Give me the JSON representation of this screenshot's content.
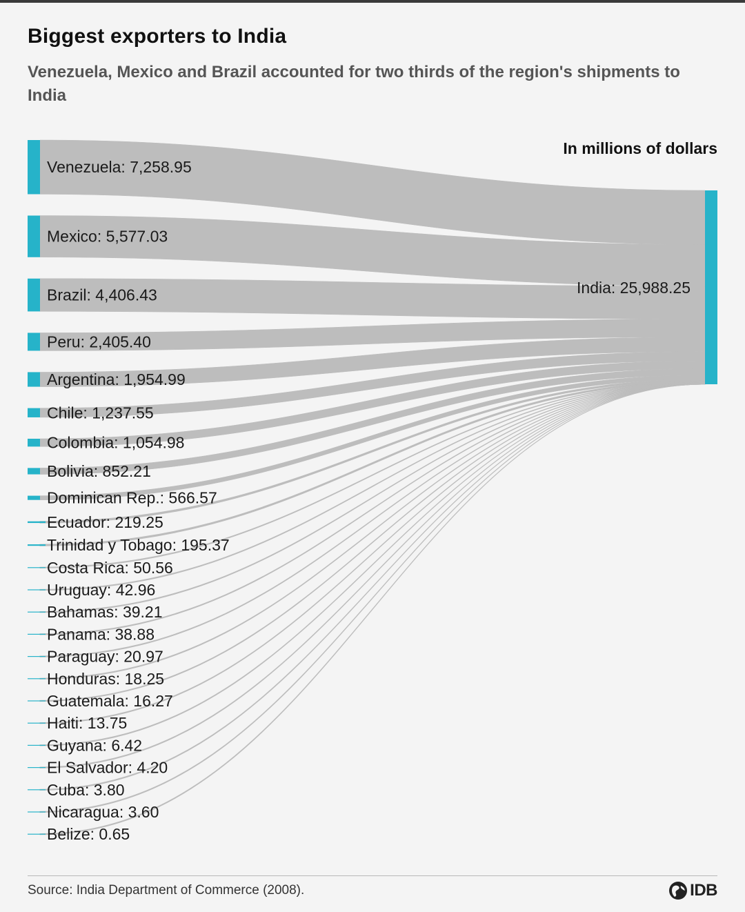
{
  "header": {
    "title": "Biggest exporters to India",
    "subtitle": "Venezuela, Mexico and Brazil accounted for two thirds of the region's shipments to India",
    "unit": "In millions of dollars"
  },
  "footer": {
    "source": "Source: India Department of Commerce (2008).",
    "logo_text": "IDB"
  },
  "colors": {
    "node": "#26b3c9",
    "link": "#bdbdbd",
    "background": "#f4f4f4"
  },
  "chart_data": {
    "type": "sankey",
    "title": "Biggest exporters to India",
    "target": {
      "name": "India",
      "value": 25988.25,
      "label": "India: 25,988.25"
    },
    "sources": [
      {
        "name": "Venezuela",
        "value": 7258.95,
        "label": "Venezuela: 7,258.95"
      },
      {
        "name": "Mexico",
        "value": 5577.03,
        "label": "Mexico: 5,577.03"
      },
      {
        "name": "Brazil",
        "value": 4406.43,
        "label": "Brazil: 4,406.43"
      },
      {
        "name": "Peru",
        "value": 2405.4,
        "label": "Peru: 2,405.40"
      },
      {
        "name": "Argentina",
        "value": 1954.99,
        "label": "Argentina: 1,954.99"
      },
      {
        "name": "Chile",
        "value": 1237.55,
        "label": "Chile: 1,237.55"
      },
      {
        "name": "Colombia",
        "value": 1054.98,
        "label": "Colombia: 1,054.98"
      },
      {
        "name": "Bolivia",
        "value": 852.21,
        "label": "Bolivia: 852.21"
      },
      {
        "name": "Dominican Rep.",
        "value": 566.57,
        "label": "Dominican Rep.: 566.57"
      },
      {
        "name": "Ecuador",
        "value": 219.25,
        "label": "Ecuador: 219.25"
      },
      {
        "name": "Trinidad y Tobago",
        "value": 195.37,
        "label": "Trinidad y Tobago: 195.37"
      },
      {
        "name": "Costa Rica",
        "value": 50.56,
        "label": "Costa Rica: 50.56"
      },
      {
        "name": "Uruguay",
        "value": 42.96,
        "label": "Uruguay: 42.96"
      },
      {
        "name": "Bahamas",
        "value": 39.21,
        "label": "Bahamas: 39.21"
      },
      {
        "name": "Panama",
        "value": 38.88,
        "label": "Panama: 38.88"
      },
      {
        "name": "Paraguay",
        "value": 20.97,
        "label": "Paraguay: 20.97"
      },
      {
        "name": "Honduras",
        "value": 18.25,
        "label": "Honduras: 18.25"
      },
      {
        "name": "Guatemala",
        "value": 16.27,
        "label": "Guatemala: 16.27"
      },
      {
        "name": "Haiti",
        "value": 13.75,
        "label": "Haiti: 13.75"
      },
      {
        "name": "Guyana",
        "value": 6.42,
        "label": "Guyana: 6.42"
      },
      {
        "name": "El Salvador",
        "value": 4.2,
        "label": "El Salvador: 4.20"
      },
      {
        "name": "Cuba",
        "value": 3.8,
        "label": "Cuba: 3.80"
      },
      {
        "name": "Nicaragua",
        "value": 3.6,
        "label": "Nicaragua: 3.60"
      },
      {
        "name": "Belize",
        "value": 0.65,
        "label": "Belize: 0.65"
      }
    ]
  }
}
